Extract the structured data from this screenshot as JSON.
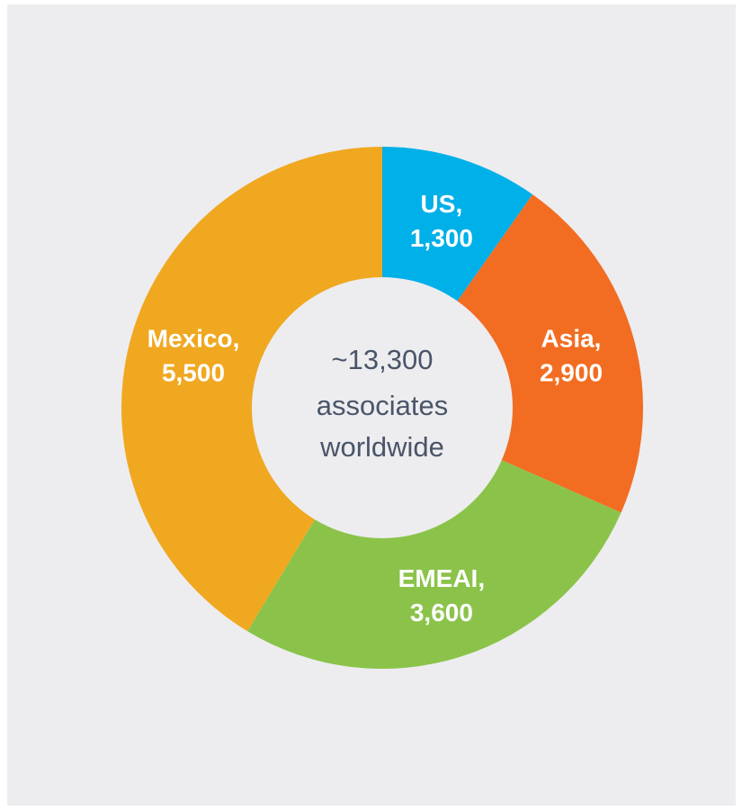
{
  "chart_data": {
    "type": "pie",
    "variant": "donut",
    "categories": [
      "US",
      "Asia",
      "EMEAI",
      "Mexico"
    ],
    "values": [
      1300,
      2900,
      3600,
      5500
    ],
    "labels": [
      {
        "name": "US,",
        "value": "1,300"
      },
      {
        "name": "Asia,",
        "value": "2,900"
      },
      {
        "name": "EMEAI,",
        "value": "3,600"
      },
      {
        "name": "Mexico,",
        "value": "5,500"
      }
    ],
    "colors": [
      "#00b0e8",
      "#f26d21",
      "#8bc34a",
      "#f0a820"
    ],
    "center_text": [
      "~13,300",
      "associates",
      "worldwide"
    ],
    "start_angle": "12 o'clock",
    "direction": "clockwise",
    "legend": "none"
  },
  "colors": {
    "background": "#ededf0",
    "hole": "#ededf0",
    "label_text": "#ffffff",
    "center_text": "#4a5568"
  }
}
